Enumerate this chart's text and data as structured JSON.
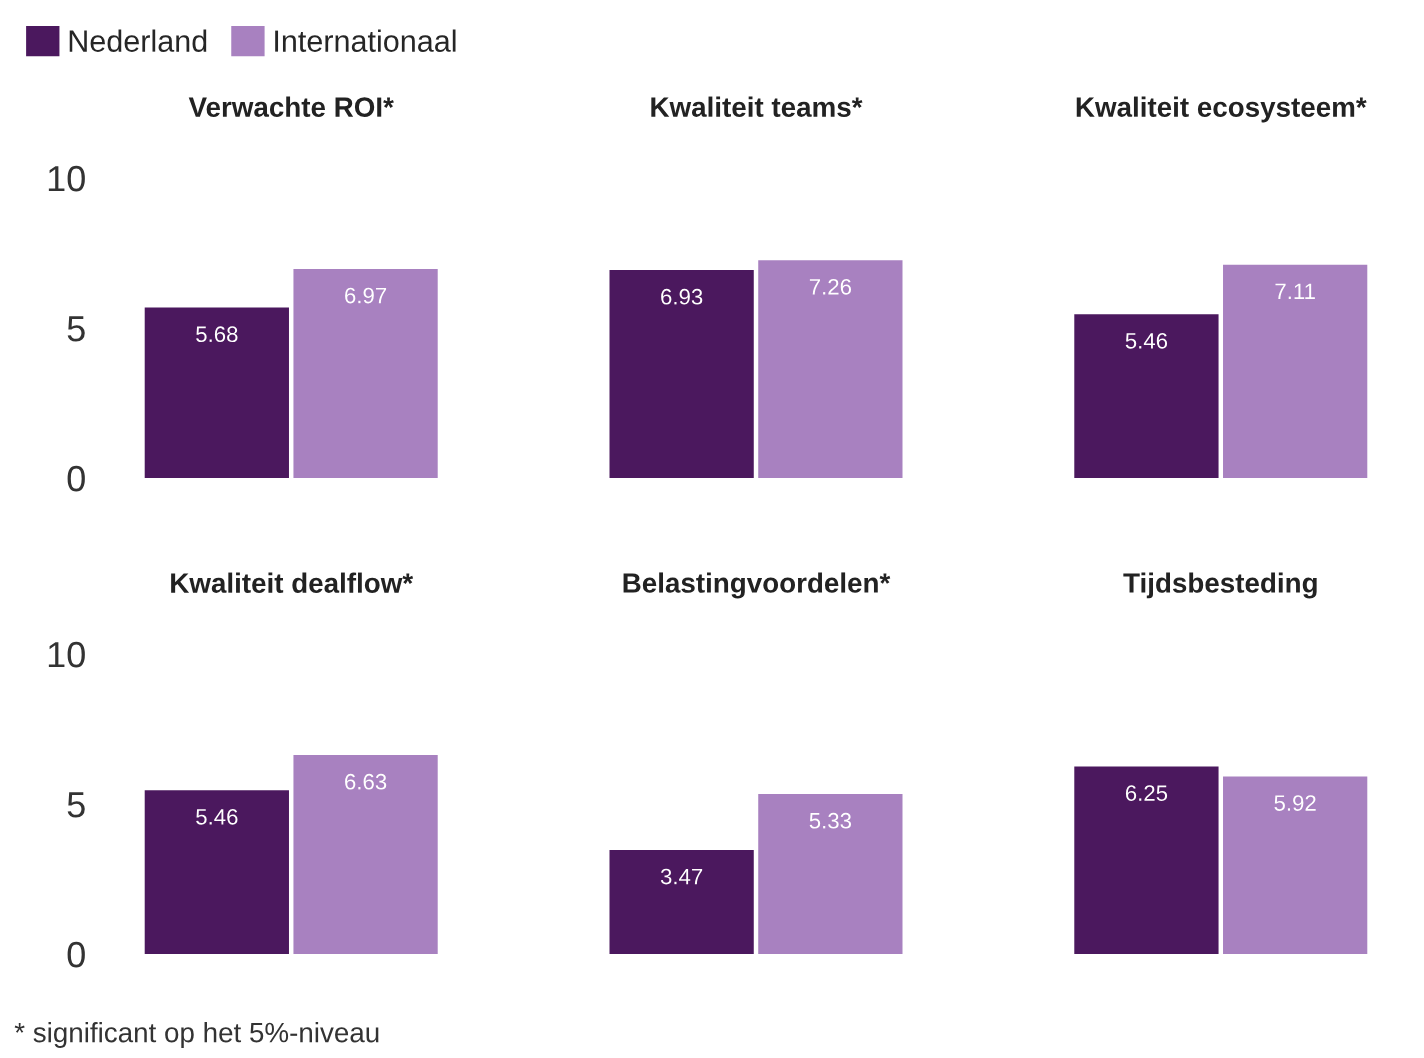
{
  "chart_data": [
    {
      "type": "bar",
      "categories": [
        "Verwachte ROI*",
        "Kwaliteit teams*",
        "Kwaliteit ecosysteem*"
      ],
      "series": [
        {
          "name": "Nederland",
          "color": "#4b185e",
          "values": [
            5.68,
            6.93,
            5.46
          ]
        },
        {
          "name": "Internationaal",
          "color": "#a881c0",
          "values": [
            6.97,
            7.26,
            7.11
          ]
        }
      ],
      "ylim": [
        0,
        10
      ],
      "yticks": [
        0,
        5,
        10
      ],
      "data_labels": true,
      "legend": "top left"
    },
    {
      "type": "bar",
      "categories": [
        "Kwaliteit dealflow*",
        "Belastingvoordelen*",
        "Tijdsbesteding"
      ],
      "series": [
        {
          "color": "#4b185e",
          "values": [
            5.46,
            3.47,
            6.25
          ]
        },
        {
          "color": "#a881c0",
          "values": [
            6.63,
            5.33,
            5.92
          ]
        }
      ],
      "ylim": [
        0,
        10
      ],
      "yticks": [
        0,
        5,
        10
      ],
      "data_labels": true,
      "annotations": [
        "* significant op het 5%-niveau"
      ]
    }
  ]
}
